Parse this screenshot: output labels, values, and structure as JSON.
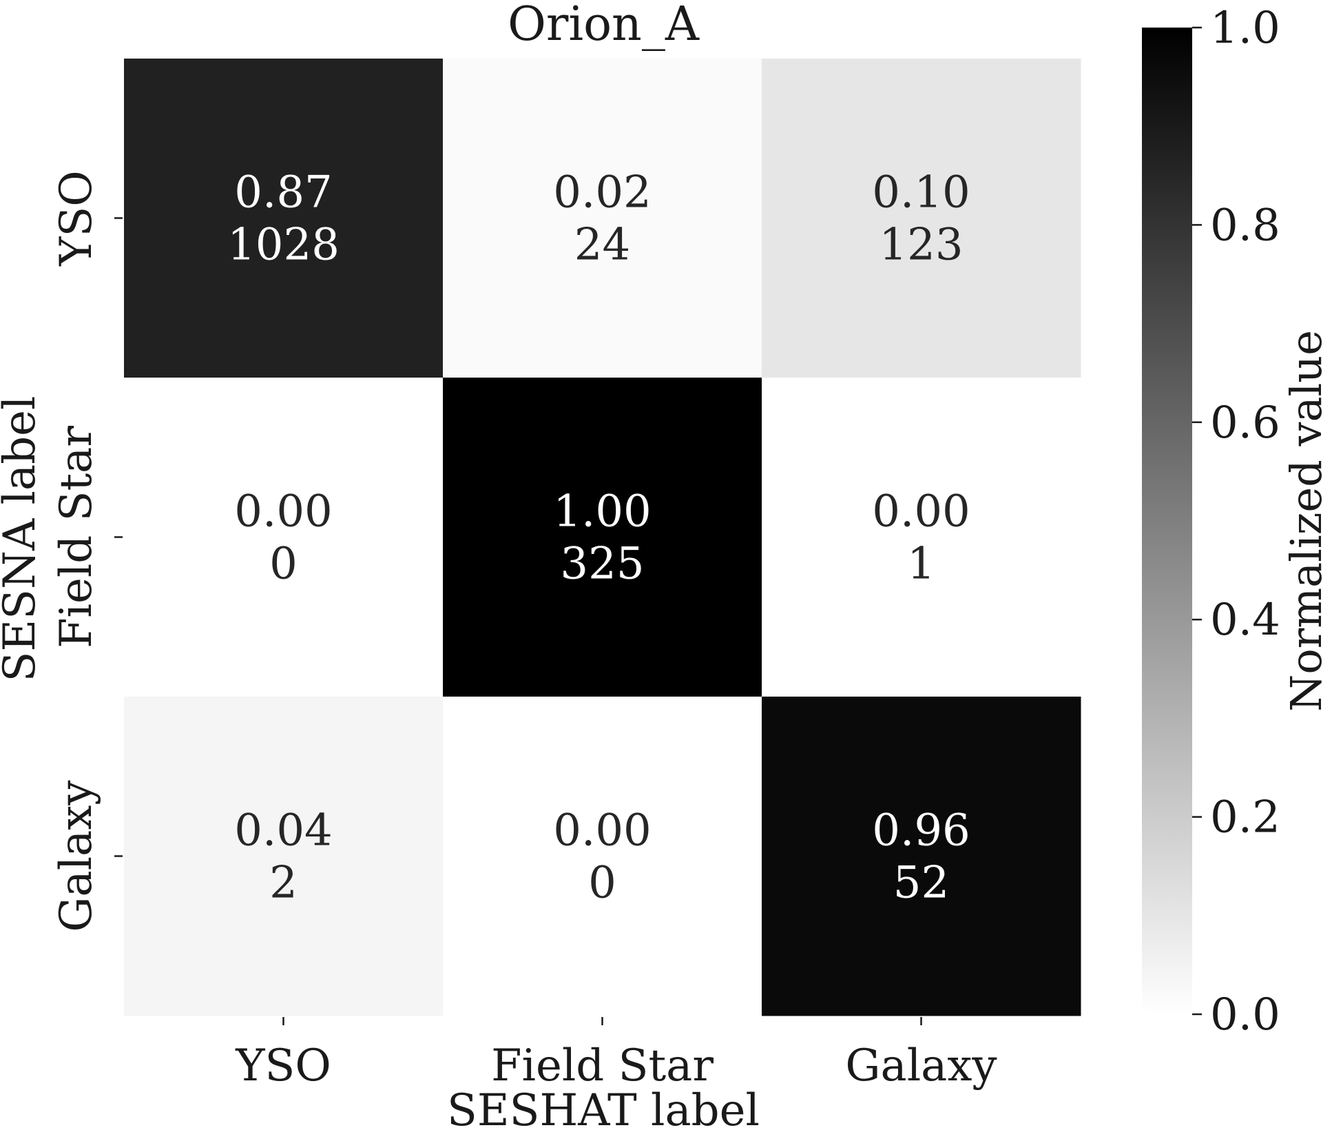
{
  "chart_data": {
    "type": "heatmap",
    "title": "Orion_A",
    "xlabel": "SESHAT label",
    "ylabel": "SESNA label",
    "x_categories": [
      "YSO",
      "Field Star",
      "Galaxy"
    ],
    "y_categories": [
      "YSO",
      "Field Star",
      "Galaxy"
    ],
    "normalized": [
      [
        0.87,
        0.02,
        0.1
      ],
      [
        0.0,
        1.0,
        0.0
      ],
      [
        0.04,
        0.0,
        0.96
      ]
    ],
    "normalized_labels": [
      [
        "0.87",
        "0.02",
        "0.10"
      ],
      [
        "0.00",
        "1.00",
        "0.00"
      ],
      [
        "0.04",
        "0.00",
        "0.96"
      ]
    ],
    "counts": [
      [
        1028,
        24,
        123
      ],
      [
        0,
        325,
        1
      ],
      [
        2,
        0,
        52
      ]
    ],
    "colorbar": {
      "label": "Normalized value",
      "range": [
        0.0,
        1.0
      ],
      "ticks": [
        0.0,
        0.2,
        0.4,
        0.6,
        0.8,
        1.0
      ],
      "tick_labels": [
        "0.0",
        "0.2",
        "0.4",
        "0.6",
        "0.8",
        "1.0"
      ]
    },
    "colormap": {
      "low": "#ffffff",
      "high": "#000000"
    },
    "grid": false
  }
}
